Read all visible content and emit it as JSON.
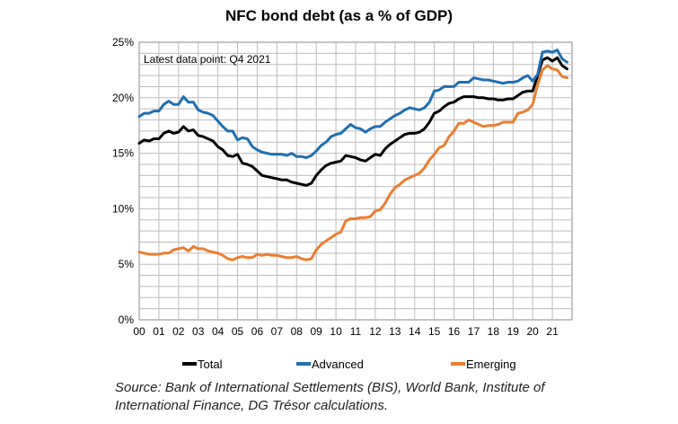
{
  "chart_data": {
    "type": "line",
    "title": "NFC bond debt (as a % of GDP)",
    "annotation": "Latest data point: Q4 2021",
    "source": "Source: Bank of International Settlements (BIS), World Bank, Institute of International Finance, DG Trésor calculations.",
    "x_tick_labels": [
      "00",
      "01",
      "02",
      "03",
      "04",
      "05",
      "06",
      "07",
      "08",
      "09",
      "10",
      "11",
      "12",
      "13",
      "14",
      "15",
      "16",
      "17",
      "18",
      "19",
      "20",
      "21"
    ],
    "y_tick_labels": [
      "0%",
      "5%",
      "10%",
      "15%",
      "20%",
      "25%"
    ],
    "ylim": [
      0,
      25
    ],
    "xlim": [
      2000.0,
      2022.0
    ],
    "grid": true,
    "legend_position": "bottom",
    "series": [
      {
        "name": "Total",
        "color": "#000000",
        "x": [
          2000.0,
          2000.25,
          2000.5,
          2000.75,
          2001.0,
          2001.25,
          2001.5,
          2001.75,
          2002.0,
          2002.25,
          2002.5,
          2002.75,
          2003.0,
          2003.25,
          2003.5,
          2003.75,
          2004.0,
          2004.25,
          2004.5,
          2004.75,
          2005.0,
          2005.25,
          2005.5,
          2005.75,
          2006.0,
          2006.25,
          2006.5,
          2006.75,
          2007.0,
          2007.25,
          2007.5,
          2007.75,
          2008.0,
          2008.25,
          2008.5,
          2008.75,
          2009.0,
          2009.25,
          2009.5,
          2009.75,
          2010.0,
          2010.25,
          2010.5,
          2010.75,
          2011.0,
          2011.25,
          2011.5,
          2011.75,
          2012.0,
          2012.25,
          2012.5,
          2012.75,
          2013.0,
          2013.25,
          2013.5,
          2013.75,
          2014.0,
          2014.25,
          2014.5,
          2014.75,
          2015.0,
          2015.25,
          2015.5,
          2015.75,
          2016.0,
          2016.25,
          2016.5,
          2016.75,
          2017.0,
          2017.25,
          2017.5,
          2017.75,
          2018.0,
          2018.25,
          2018.5,
          2018.75,
          2019.0,
          2019.25,
          2019.5,
          2019.75,
          2020.0,
          2020.25,
          2020.5,
          2020.75,
          2021.0,
          2021.25,
          2021.5,
          2021.75
        ],
        "values": [
          15.9,
          16.2,
          16.1,
          16.3,
          16.3,
          16.8,
          17.0,
          16.8,
          16.9,
          17.4,
          17.0,
          17.1,
          16.6,
          16.5,
          16.3,
          16.1,
          15.6,
          15.3,
          14.8,
          14.7,
          14.9,
          14.1,
          14.0,
          13.8,
          13.4,
          13.0,
          12.9,
          12.8,
          12.7,
          12.6,
          12.6,
          12.4,
          12.3,
          12.2,
          12.1,
          12.3,
          13.0,
          13.5,
          13.9,
          14.1,
          14.2,
          14.3,
          14.8,
          14.7,
          14.6,
          14.4,
          14.3,
          14.6,
          14.9,
          14.8,
          15.4,
          15.8,
          16.1,
          16.4,
          16.7,
          16.8,
          16.8,
          16.9,
          17.2,
          17.8,
          18.6,
          18.8,
          19.2,
          19.5,
          19.6,
          19.9,
          20.1,
          20.1,
          20.1,
          20.0,
          20.0,
          19.9,
          19.9,
          19.8,
          19.8,
          19.9,
          19.9,
          20.2,
          20.5,
          20.6,
          20.6,
          22.0,
          23.4,
          23.6,
          23.3,
          23.6,
          22.9,
          22.6
        ]
      },
      {
        "name": "Advanced",
        "color": "#1f6fb2",
        "x": [
          2000.0,
          2000.25,
          2000.5,
          2000.75,
          2001.0,
          2001.25,
          2001.5,
          2001.75,
          2002.0,
          2002.25,
          2002.5,
          2002.75,
          2003.0,
          2003.25,
          2003.5,
          2003.75,
          2004.0,
          2004.25,
          2004.5,
          2004.75,
          2005.0,
          2005.25,
          2005.5,
          2005.75,
          2006.0,
          2006.25,
          2006.5,
          2006.75,
          2007.0,
          2007.25,
          2007.5,
          2007.75,
          2008.0,
          2008.25,
          2008.5,
          2008.75,
          2009.0,
          2009.25,
          2009.5,
          2009.75,
          2010.0,
          2010.25,
          2010.5,
          2010.75,
          2011.0,
          2011.25,
          2011.5,
          2011.75,
          2012.0,
          2012.25,
          2012.5,
          2012.75,
          2013.0,
          2013.25,
          2013.5,
          2013.75,
          2014.0,
          2014.25,
          2014.5,
          2014.75,
          2015.0,
          2015.25,
          2015.5,
          2015.75,
          2016.0,
          2016.25,
          2016.5,
          2016.75,
          2017.0,
          2017.25,
          2017.5,
          2017.75,
          2018.0,
          2018.25,
          2018.5,
          2018.75,
          2019.0,
          2019.25,
          2019.5,
          2019.75,
          2020.0,
          2020.25,
          2020.5,
          2020.75,
          2021.0,
          2021.25,
          2021.5,
          2021.75
        ],
        "values": [
          18.3,
          18.6,
          18.6,
          18.8,
          18.8,
          19.4,
          19.7,
          19.4,
          19.4,
          20.1,
          19.6,
          19.6,
          18.9,
          18.7,
          18.6,
          18.4,
          17.9,
          17.4,
          17.0,
          17.0,
          16.2,
          16.4,
          16.3,
          15.6,
          15.3,
          15.1,
          15.0,
          14.9,
          14.9,
          14.9,
          14.8,
          15.0,
          14.7,
          14.7,
          14.6,
          14.8,
          15.2,
          15.7,
          16.0,
          16.5,
          16.7,
          16.8,
          17.2,
          17.6,
          17.3,
          17.2,
          16.9,
          17.2,
          17.4,
          17.4,
          17.8,
          18.1,
          18.4,
          18.6,
          18.9,
          19.1,
          19.0,
          18.9,
          19.1,
          19.6,
          20.6,
          20.7,
          21.0,
          21.0,
          21.0,
          21.4,
          21.4,
          21.4,
          21.8,
          21.7,
          21.6,
          21.6,
          21.5,
          21.4,
          21.3,
          21.4,
          21.4,
          21.5,
          21.8,
          22.0,
          21.5,
          22.1,
          24.1,
          24.2,
          24.1,
          24.3,
          23.5,
          23.2
        ]
      },
      {
        "name": "Emerging",
        "color": "#ed7d31",
        "x": [
          2000.0,
          2000.25,
          2000.5,
          2000.75,
          2001.0,
          2001.25,
          2001.5,
          2001.75,
          2002.0,
          2002.25,
          2002.5,
          2002.75,
          2003.0,
          2003.25,
          2003.5,
          2003.75,
          2004.0,
          2004.25,
          2004.5,
          2004.75,
          2005.0,
          2005.25,
          2005.5,
          2005.75,
          2006.0,
          2006.25,
          2006.5,
          2006.75,
          2007.0,
          2007.25,
          2007.5,
          2007.75,
          2008.0,
          2008.25,
          2008.5,
          2008.75,
          2009.0,
          2009.25,
          2009.5,
          2009.75,
          2010.0,
          2010.25,
          2010.5,
          2010.75,
          2011.0,
          2011.25,
          2011.5,
          2011.75,
          2012.0,
          2012.25,
          2012.5,
          2012.75,
          2013.0,
          2013.25,
          2013.5,
          2013.75,
          2014.0,
          2014.25,
          2014.5,
          2014.75,
          2015.0,
          2015.25,
          2015.5,
          2015.75,
          2016.0,
          2016.25,
          2016.5,
          2016.75,
          2017.0,
          2017.25,
          2017.5,
          2017.75,
          2018.0,
          2018.25,
          2018.5,
          2018.75,
          2019.0,
          2019.25,
          2019.5,
          2019.75,
          2020.0,
          2020.25,
          2020.5,
          2020.75,
          2021.0,
          2021.25,
          2021.5,
          2021.75
        ],
        "values": [
          6.1,
          6.0,
          5.9,
          5.9,
          5.9,
          6.0,
          6.0,
          6.3,
          6.4,
          6.5,
          6.2,
          6.6,
          6.4,
          6.4,
          6.2,
          6.1,
          6.0,
          5.8,
          5.5,
          5.4,
          5.6,
          5.7,
          5.6,
          5.6,
          5.9,
          5.8,
          5.9,
          5.8,
          5.8,
          5.7,
          5.6,
          5.6,
          5.7,
          5.5,
          5.4,
          5.5,
          6.3,
          6.8,
          7.1,
          7.4,
          7.7,
          7.9,
          8.9,
          9.1,
          9.1,
          9.2,
          9.2,
          9.3,
          9.8,
          9.9,
          10.5,
          11.3,
          11.9,
          12.2,
          12.6,
          12.8,
          13.0,
          13.2,
          13.7,
          14.4,
          14.9,
          15.5,
          15.7,
          16.5,
          17.0,
          17.7,
          17.7,
          18.0,
          17.8,
          17.6,
          17.4,
          17.5,
          17.5,
          17.6,
          17.8,
          17.8,
          17.8,
          18.6,
          18.7,
          18.9,
          19.4,
          21.2,
          22.5,
          22.9,
          22.6,
          22.5,
          21.9,
          21.8
        ]
      }
    ]
  }
}
